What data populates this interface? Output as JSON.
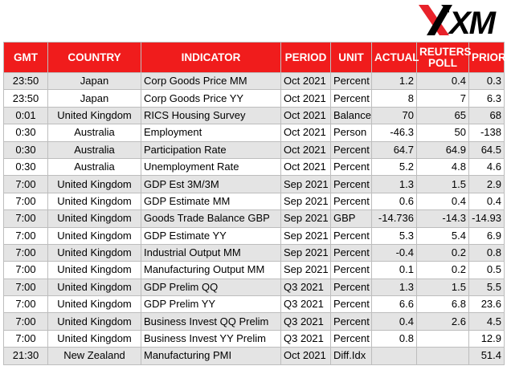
{
  "brand": {
    "logo_text": "XM",
    "logo_color": "#000000"
  },
  "colors": {
    "header_bg": "#f01c1c",
    "header_text": "#ffffff",
    "alt_row": "#e4e4e4",
    "border": "#bdbdbd"
  },
  "table": {
    "headers": {
      "gmt": "GMT",
      "country": "COUNTRY",
      "indicator": "INDICATOR",
      "period": "PERIOD",
      "unit": "UNIT",
      "actual": "ACTUAL",
      "poll": "REUTERS POLL",
      "prior": "PRIOR"
    },
    "rows": [
      {
        "gmt": "23:50",
        "country": "Japan",
        "indicator": "Corp Goods Price MM",
        "period": "Oct 2021",
        "unit": "Percent",
        "actual": "1.2",
        "poll": "0.4",
        "prior": "0.3"
      },
      {
        "gmt": "23:50",
        "country": "Japan",
        "indicator": "Corp Goods Price YY",
        "period": "Oct 2021",
        "unit": "Percent",
        "actual": "8",
        "poll": "7",
        "prior": "6.3"
      },
      {
        "gmt": "0:01",
        "country": "United Kingdom",
        "indicator": "RICS Housing Survey",
        "period": "Oct 2021",
        "unit": "Balance",
        "actual": "70",
        "poll": "65",
        "prior": "68"
      },
      {
        "gmt": "0:30",
        "country": "Australia",
        "indicator": "Employment",
        "period": "Oct 2021",
        "unit": "Person",
        "actual": "-46.3",
        "poll": "50",
        "prior": "-138"
      },
      {
        "gmt": "0:30",
        "country": "Australia",
        "indicator": "Participation Rate",
        "period": "Oct 2021",
        "unit": "Percent",
        "actual": "64.7",
        "poll": "64.9",
        "prior": "64.5"
      },
      {
        "gmt": "0:30",
        "country": "Australia",
        "indicator": "Unemployment Rate",
        "period": "Oct 2021",
        "unit": "Percent",
        "actual": "5.2",
        "poll": "4.8",
        "prior": "4.6"
      },
      {
        "gmt": "7:00",
        "country": "United Kingdom",
        "indicator": "GDP Est 3M/3M",
        "period": "Sep 2021",
        "unit": "Percent",
        "actual": "1.3",
        "poll": "1.5",
        "prior": "2.9"
      },
      {
        "gmt": "7:00",
        "country": "United Kingdom",
        "indicator": "GDP Estimate MM",
        "period": "Sep 2021",
        "unit": "Percent",
        "actual": "0.6",
        "poll": "0.4",
        "prior": "0.4"
      },
      {
        "gmt": "7:00",
        "country": "United Kingdom",
        "indicator": "Goods Trade Balance GBP",
        "period": "Sep 2021",
        "unit": "GBP",
        "actual": "-14.736",
        "poll": "-14.3",
        "prior": "-14.93"
      },
      {
        "gmt": "7:00",
        "country": "United Kingdom",
        "indicator": "GDP Estimate YY",
        "period": "Sep 2021",
        "unit": "Percent",
        "actual": "5.3",
        "poll": "5.4",
        "prior": "6.9"
      },
      {
        "gmt": "7:00",
        "country": "United Kingdom",
        "indicator": "Industrial Output MM",
        "period": "Sep 2021",
        "unit": "Percent",
        "actual": "-0.4",
        "poll": "0.2",
        "prior": "0.8"
      },
      {
        "gmt": "7:00",
        "country": "United Kingdom",
        "indicator": "Manufacturing Output MM",
        "period": "Sep 2021",
        "unit": "Percent",
        "actual": "0.1",
        "poll": "0.2",
        "prior": "0.5"
      },
      {
        "gmt": "7:00",
        "country": "United Kingdom",
        "indicator": "GDP Prelim QQ",
        "period": "Q3 2021",
        "unit": "Percent",
        "actual": "1.3",
        "poll": "1.5",
        "prior": "5.5"
      },
      {
        "gmt": "7:00",
        "country": "United Kingdom",
        "indicator": "GDP Prelim YY",
        "period": "Q3 2021",
        "unit": "Percent",
        "actual": "6.6",
        "poll": "6.8",
        "prior": "23.6"
      },
      {
        "gmt": "7:00",
        "country": "United Kingdom",
        "indicator": "Business Invest QQ Prelim",
        "period": "Q3 2021",
        "unit": "Percent",
        "actual": "0.4",
        "poll": "2.6",
        "prior": "4.5"
      },
      {
        "gmt": "7:00",
        "country": "United Kingdom",
        "indicator": "Business Invest YY Prelim",
        "period": "Q3 2021",
        "unit": "Percent",
        "actual": "0.8",
        "poll": "",
        "prior": "12.9"
      },
      {
        "gmt": "21:30",
        "country": "New Zealand",
        "indicator": "Manufacturing PMI",
        "period": "Oct 2021",
        "unit": "Diff.Idx",
        "actual": "",
        "poll": "",
        "prior": "51.4"
      }
    ]
  }
}
